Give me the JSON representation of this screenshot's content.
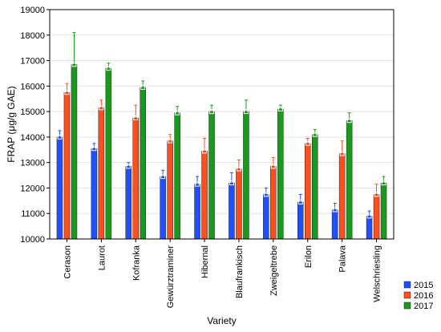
{
  "chart_data": {
    "type": "bar",
    "xlabel": "Variety",
    "ylabel": "FRAP (μg/g GAE)",
    "ylim": [
      10000,
      19000
    ],
    "yticks": [
      10000,
      11000,
      12000,
      13000,
      14000,
      15000,
      16000,
      17000,
      18000,
      19000
    ],
    "grid": true,
    "legend_position": "bottom-right",
    "categories": [
      "Cerason",
      "Laurot",
      "Kofranka",
      "Gewürztraminer",
      "Hibernal",
      "Blaufrankisch",
      "Zweigeltrebe",
      "Erilon",
      "Palava",
      "Welschriesling"
    ],
    "series": [
      {
        "name": "2015",
        "color": "#1f4fff",
        "values": [
          14000,
          13550,
          12850,
          12450,
          12150,
          12200,
          11750,
          11450,
          11150,
          10900
        ],
        "errors": [
          250,
          200,
          150,
          250,
          300,
          400,
          250,
          300,
          250,
          200
        ]
      },
      {
        "name": "2016",
        "color": "#ff4f1f",
        "values": [
          15750,
          15150,
          14750,
          13850,
          13450,
          12750,
          12850,
          13750,
          13350,
          11750
        ],
        "errors": [
          350,
          300,
          500,
          250,
          500,
          350,
          350,
          200,
          500,
          400
        ]
      },
      {
        "name": "2017",
        "color": "#1a9a1a",
        "values": [
          16850,
          16700,
          15950,
          14950,
          15000,
          15000,
          15100,
          14100,
          14650,
          12200
        ],
        "errors": [
          1250,
          200,
          250,
          250,
          250,
          450,
          150,
          200,
          300,
          250
        ]
      }
    ]
  }
}
